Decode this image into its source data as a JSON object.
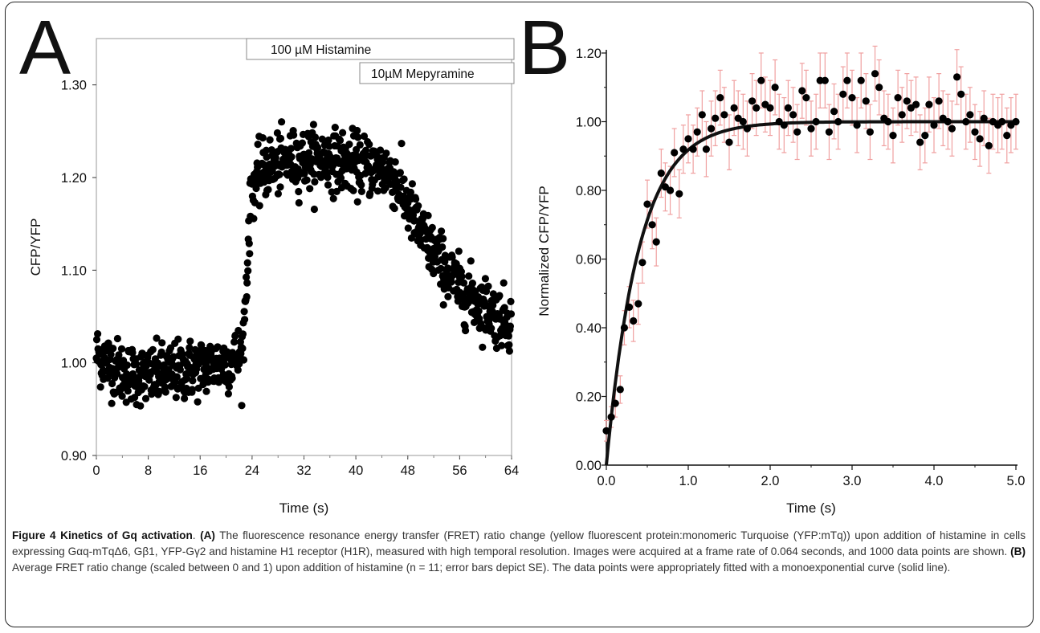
{
  "panel_labels": {
    "a": "A",
    "b": "B"
  },
  "annotations": {
    "histamine": "100 µM Histamine",
    "mepyramine": "10µM Mepyramine"
  },
  "caption": {
    "figure_label": "Figure 4 Kinetics of Gq activation",
    "segments": [
      {
        "text": ". ",
        "bold": false
      },
      {
        "text": "(A)",
        "bold": true
      },
      {
        "text": " The fluorescence resonance energy transfer (FRET) ratio change (yellow fluorescent protein:monomeric Turquoise (YFP:mTq)) upon addition of histamine in cells expressing Gαq-mTqΔ6, Gβ1, YFP-Gγ2 and histamine H1 receptor (H1R), measured with high temporal resolution. Images were acquired at a frame rate of 0.064 seconds, and 1000 data points are shown. ",
        "bold": false
      },
      {
        "text": "(B)",
        "bold": true
      },
      {
        "text": " Average FRET ratio change (scaled between 0 and 1) upon addition of histamine (n = 11; error bars depict SE). The data points were appropriately fitted with a monoexponential curve (solid line).",
        "bold": false
      }
    ]
  },
  "colors": {
    "points": "#000000",
    "error_bars": "#f0a0a0",
    "fit": "#111111",
    "frame": "#222222"
  },
  "chart_data": [
    {
      "type": "scatter",
      "panel": "A",
      "title": "",
      "xlabel": "Time (s)",
      "ylabel": "CFP/YFP",
      "xlim": [
        0,
        64
      ],
      "ylim": [
        0.9,
        1.35
      ],
      "xticks": [
        "0",
        "8",
        "16",
        "24",
        "32",
        "40",
        "48",
        "56",
        "64"
      ],
      "yticks": [
        "0.90",
        "1.00",
        "1.10",
        "1.20",
        "1.30"
      ],
      "n_points": 1000,
      "x": [
        0,
        4,
        8,
        12,
        16,
        20,
        22.5,
        23,
        23.5,
        24,
        26,
        28,
        32,
        36,
        40,
        44,
        46,
        48,
        50,
        52,
        54,
        56,
        58,
        60,
        62,
        64
      ],
      "y": [
        1.01,
        0.99,
        0.985,
        0.99,
        0.995,
        1.0,
        1.01,
        1.07,
        1.14,
        1.19,
        1.21,
        1.215,
        1.22,
        1.22,
        1.215,
        1.21,
        1.2,
        1.17,
        1.14,
        1.12,
        1.1,
        1.08,
        1.07,
        1.06,
        1.05,
        1.045
      ],
      "noise_sd": 0.016
    },
    {
      "type": "scatter",
      "panel": "B",
      "title": "",
      "xlabel": "Time (s)",
      "ylabel": "Normalized CFP/YFP",
      "xlim": [
        0,
        5
      ],
      "ylim": [
        0,
        1.2
      ],
      "xticks": [
        "0.0",
        "1.0",
        "2.0",
        "3.0",
        "4.0",
        "5.0"
      ],
      "yticks": [
        "0.00",
        "0.20",
        "0.40",
        "0.60",
        "0.80",
        "1.00",
        "1.20"
      ],
      "fit": {
        "model": "monoexponential",
        "tau_s": 0.4
      },
      "points": {
        "x": [
          0.0,
          0.06,
          0.11,
          0.17,
          0.22,
          0.28,
          0.33,
          0.39,
          0.44,
          0.5,
          0.56,
          0.61,
          0.67,
          0.72,
          0.78,
          0.83,
          0.89,
          0.94,
          1.0,
          1.06,
          1.11,
          1.17,
          1.22,
          1.28,
          1.33,
          1.39,
          1.44,
          1.5,
          1.56,
          1.61,
          1.67,
          1.72,
          1.78,
          1.83,
          1.89,
          1.94,
          2.0,
          2.06,
          2.11,
          2.17,
          2.22,
          2.28,
          2.33,
          2.39,
          2.44,
          2.5,
          2.56,
          2.61,
          2.67,
          2.72,
          2.78,
          2.83,
          2.89,
          2.94,
          3.0,
          3.06,
          3.11,
          3.17,
          3.22,
          3.28,
          3.33,
          3.39,
          3.44,
          3.5,
          3.56,
          3.61,
          3.67,
          3.72,
          3.78,
          3.83,
          3.89,
          3.94,
          4.0,
          4.06,
          4.11,
          4.17,
          4.22,
          4.28,
          4.33,
          4.39,
          4.44,
          4.5,
          4.56,
          4.61,
          4.67,
          4.72,
          4.78,
          4.83,
          4.89,
          4.94,
          5.0
        ],
        "y": [
          0.1,
          0.14,
          0.18,
          0.22,
          0.4,
          0.46,
          0.42,
          0.47,
          0.59,
          0.76,
          0.7,
          0.65,
          0.85,
          0.81,
          0.8,
          0.91,
          0.79,
          0.92,
          0.95,
          0.92,
          0.97,
          1.02,
          0.92,
          0.98,
          1.01,
          1.07,
          1.02,
          0.94,
          1.04,
          1.01,
          1.0,
          0.98,
          1.06,
          1.04,
          1.12,
          1.05,
          1.04,
          1.1,
          1.0,
          0.99,
          1.04,
          1.02,
          0.97,
          1.09,
          1.07,
          0.98,
          1.0,
          1.12,
          1.12,
          0.97,
          1.03,
          1.0,
          1.08,
          1.12,
          1.07,
          0.99,
          1.12,
          1.06,
          0.97,
          1.14,
          1.1,
          1.01,
          1.0,
          0.96,
          1.07,
          1.02,
          1.06,
          1.04,
          1.05,
          0.94,
          0.96,
          1.05,
          0.99,
          1.06,
          1.01,
          1.0,
          0.98,
          1.13,
          1.08,
          1.0,
          1.02,
          0.97,
          0.95,
          1.01,
          0.93,
          1.0,
          0.99,
          1.0,
          0.96,
          0.99,
          1.0
        ],
        "se": [
          0.03,
          0.03,
          0.04,
          0.04,
          0.05,
          0.06,
          0.06,
          0.06,
          0.06,
          0.07,
          0.07,
          0.07,
          0.07,
          0.07,
          0.07,
          0.07,
          0.07,
          0.07,
          0.07,
          0.07,
          0.07,
          0.07,
          0.08,
          0.08,
          0.08,
          0.08,
          0.08,
          0.08,
          0.08,
          0.08,
          0.08,
          0.08,
          0.08,
          0.08,
          0.08,
          0.08,
          0.08,
          0.08,
          0.08,
          0.08,
          0.08,
          0.08,
          0.08,
          0.08,
          0.08,
          0.08,
          0.08,
          0.08,
          0.08,
          0.08,
          0.08,
          0.08,
          0.08,
          0.08,
          0.08,
          0.08,
          0.08,
          0.08,
          0.08,
          0.08,
          0.08,
          0.08,
          0.08,
          0.08,
          0.08,
          0.08,
          0.08,
          0.08,
          0.08,
          0.08,
          0.08,
          0.08,
          0.08,
          0.08,
          0.08,
          0.08,
          0.08,
          0.08,
          0.08,
          0.08,
          0.08,
          0.08,
          0.08,
          0.08,
          0.08,
          0.08,
          0.08,
          0.08,
          0.08,
          0.08,
          0.08
        ]
      }
    }
  ]
}
